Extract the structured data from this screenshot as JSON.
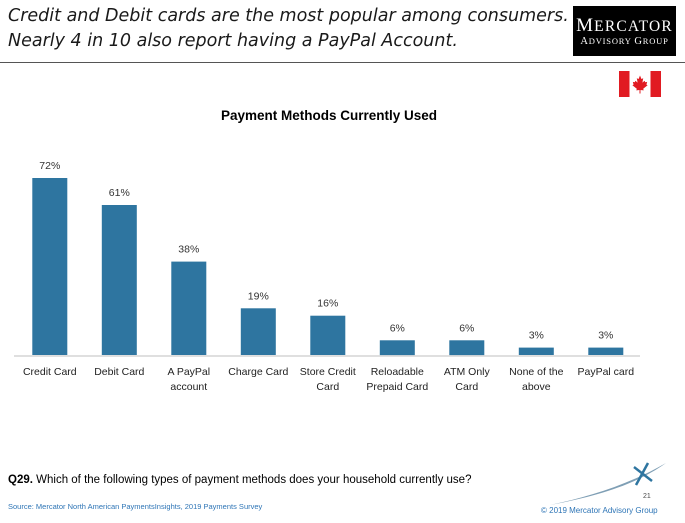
{
  "header": {
    "line1": "Credit and Debit cards are the most popular among consumers.",
    "line2": "Nearly 4 in 10 also report having a PayPal Account."
  },
  "logo": {
    "name": "Mercator",
    "tagline": "Advisory Group"
  },
  "flag": {
    "icon": "canada-flag-icon",
    "red": "#e11b22"
  },
  "chart_data": {
    "type": "bar",
    "title": "Payment Methods Currently Used",
    "categories": [
      [
        "Credit Card"
      ],
      [
        "Debit Card"
      ],
      [
        "A PayPal",
        "account"
      ],
      [
        "Charge Card"
      ],
      [
        "Store Credit",
        "Card"
      ],
      [
        "Reloadable",
        "Prepaid Card"
      ],
      [
        "ATM Only",
        "Card"
      ],
      [
        "None of the",
        "above"
      ],
      [
        "PayPal card"
      ]
    ],
    "values": [
      72,
      61,
      38,
      19,
      16,
      6,
      6,
      3,
      3
    ],
    "value_labels": [
      "72%",
      "61%",
      "38%",
      "19%",
      "16%",
      "6%",
      "6%",
      "3%",
      "3%"
    ],
    "ylim": [
      0,
      100
    ],
    "bar_color": "#2e75a0",
    "grid": false,
    "legend": "none"
  },
  "footer": {
    "question_prefix": "Q29.",
    "question_text": " Which of the following types of payment methods does your household currently use?",
    "source": "Source: Mercator North American PaymentsInsights, 2019 Payments Survey",
    "page_number": "21",
    "copyright": "© 2019 Mercator Advisory Group"
  }
}
